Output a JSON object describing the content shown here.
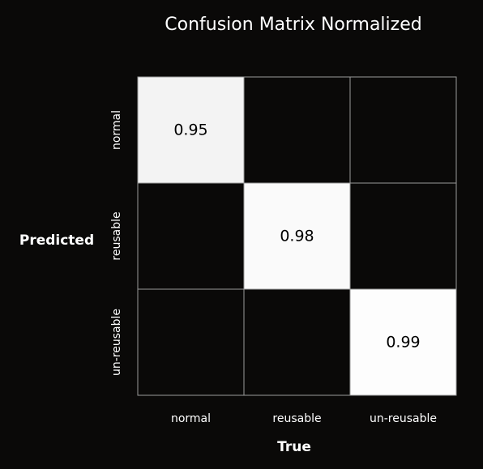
{
  "chart_data": {
    "type": "heatmap",
    "title": "Confusion Matrix Normalized",
    "xlabel": "True",
    "ylabel": "Predicted",
    "x_categories": [
      "normal",
      "reusable",
      "un-reusable"
    ],
    "y_categories": [
      "normal",
      "reusable",
      "un-reusable"
    ],
    "values": [
      [
        0.95,
        0.0,
        0.0
      ],
      [
        0.0,
        0.98,
        0.0
      ],
      [
        0.0,
        0.0,
        0.99
      ]
    ],
    "cell_labels": [
      [
        "0.95",
        "",
        ""
      ],
      [
        "",
        "0.98",
        ""
      ],
      [
        "",
        "",
        "0.99"
      ]
    ],
    "value_range": [
      0,
      1
    ],
    "colormap": {
      "low": "#0a0908",
      "high": "#ffffff"
    },
    "grid": true
  }
}
